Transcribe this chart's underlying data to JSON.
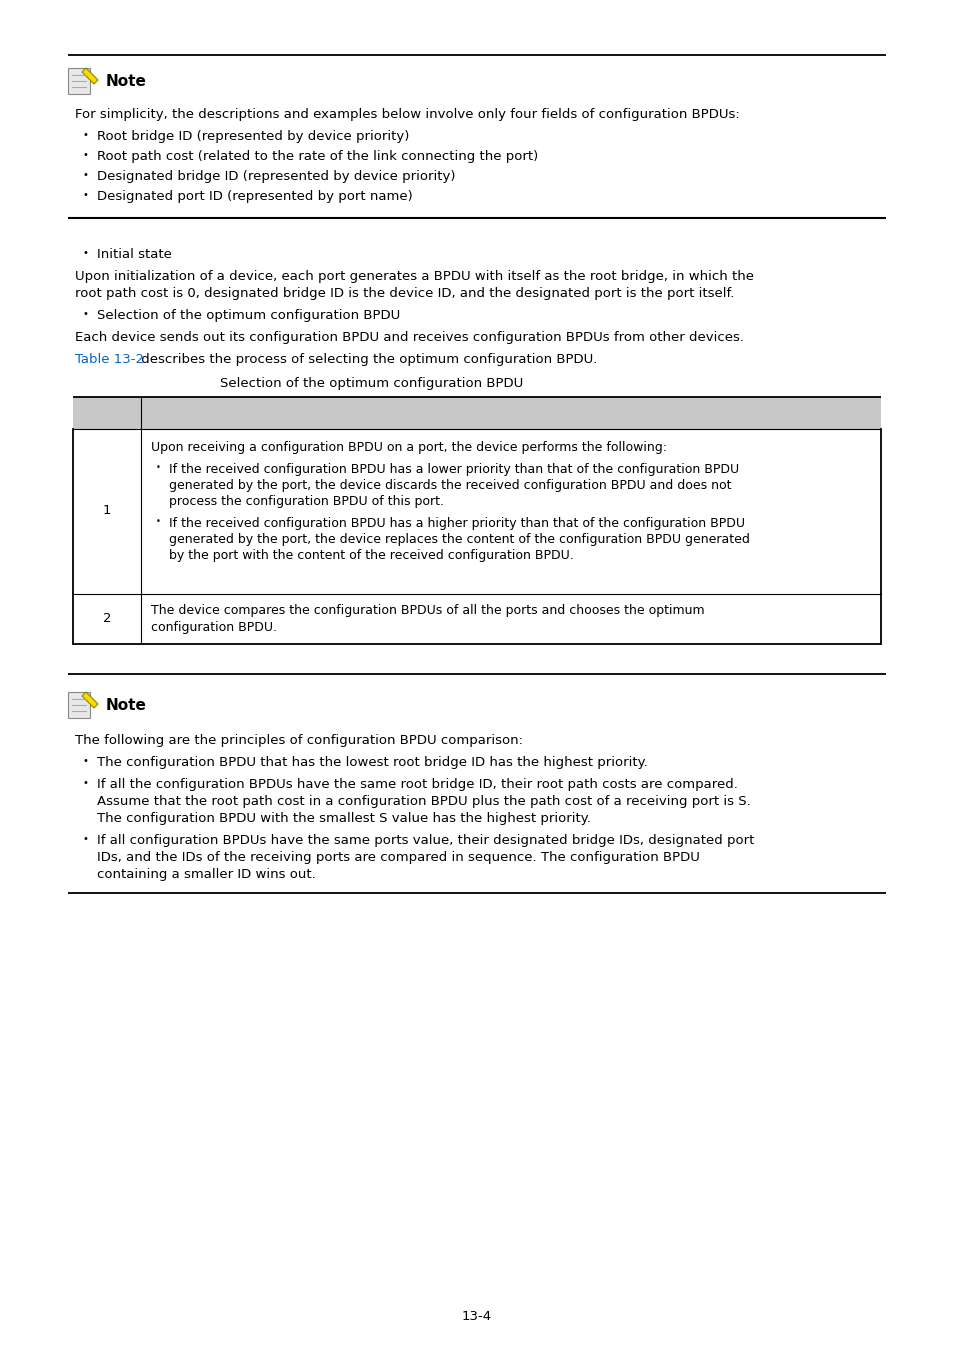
{
  "page_bg": "#ffffff",
  "text_color": "#000000",
  "link_color": "#0563C1",
  "line_color": "#000000",
  "table_header_bg": "#c8c8c8",
  "table_border_color": "#000000",
  "page_number": "13-4",
  "note1": {
    "header_text": "Note",
    "body": "For simplicity, the descriptions and examples below involve only four fields of configuration BPDUs:",
    "bullets": [
      "Root bridge ID (represented by device priority)",
      "Root path cost (related to the rate of the link connecting the port)",
      "Designated bridge ID (represented by device priority)",
      "Designated port ID (represented by port name)"
    ]
  },
  "section_middle": {
    "bullet1": "Initial state",
    "para1a": "Upon initialization of a device, each port generates a BPDU with itself as the root bridge, in which the",
    "para1b": "root path cost is 0, designated bridge ID is the device ID, and the designated port is the port itself.",
    "bullet2": "Selection of the optimum configuration BPDU",
    "para2": "Each device sends out its configuration BPDU and receives configuration BPDUs from other devices.",
    "link_text": "Table 13-2",
    "link_rest": " describes the process of selecting the optimum configuration BPDU.",
    "table_title": "Selection of the optimum configuration BPDU",
    "table_row1_num": "1",
    "table_row1_intro": "Upon receiving a configuration BPDU on a port, the device performs the following:",
    "table_row1_b1a": "If the received configuration BPDU has a lower priority than that of the configuration BPDU",
    "table_row1_b1b": "generated by the port, the device discards the received configuration BPDU and does not",
    "table_row1_b1c": "process the configuration BPDU of this port.",
    "table_row1_b2a": "If the received configuration BPDU has a higher priority than that of the configuration BPDU",
    "table_row1_b2b": "generated by the port, the device replaces the content of the configuration BPDU generated",
    "table_row1_b2c": "by the port with the content of the received configuration BPDU.",
    "table_row2_num": "2",
    "table_row2_a": "The device compares the configuration BPDUs of all the ports and chooses the optimum",
    "table_row2_b": "configuration BPDU."
  },
  "note2": {
    "header_text": "Note",
    "body": "The following are the principles of configuration BPDU comparison:",
    "bullet1": "The configuration BPDU that has the lowest root bridge ID has the highest priority.",
    "bullet2a": "If all the configuration BPDUs have the same root bridge ID, their root path costs are compared.",
    "bullet2b": "Assume that the root path cost in a configuration BPDU plus the path cost of a receiving port is S.",
    "bullet2c": "The configuration BPDU with the smallest S value has the highest priority.",
    "bullet3a": "If all configuration BPDUs have the same ports value, their designated bridge IDs, designated port",
    "bullet3b": "IDs, and the IDs of the receiving ports are compared in sequence. The configuration BPDU",
    "bullet3c": "containing a smaller ID wins out."
  }
}
